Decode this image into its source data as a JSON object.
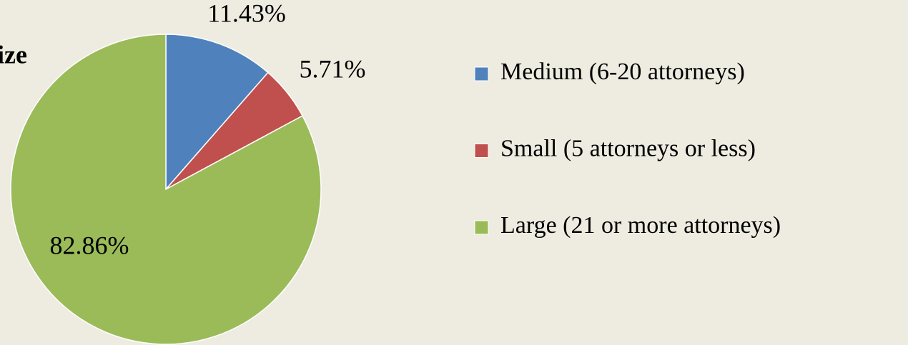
{
  "chart_data": {
    "type": "pie",
    "title": "ize",
    "categories": [
      "Medium (6-20 attorneys)",
      "Small (5 attorneys or less)",
      "Large (21 or more attorneys)"
    ],
    "values": [
      11.43,
      5.71,
      82.86
    ],
    "value_labels": [
      "11.43%",
      "5.71%",
      "82.86%"
    ],
    "colors": [
      "#4f81bd",
      "#c0504d",
      "#9bbb59"
    ],
    "legend": "right"
  }
}
